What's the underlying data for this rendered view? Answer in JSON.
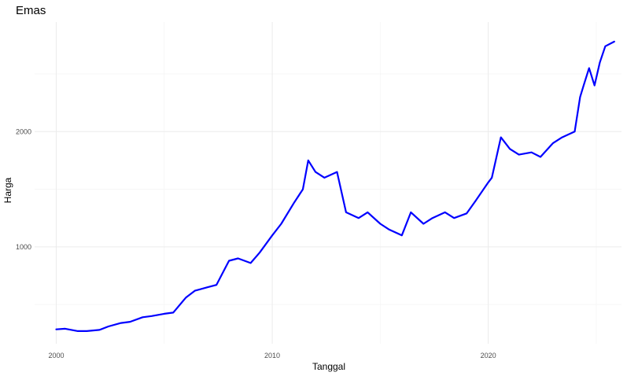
{
  "chart_data": {
    "type": "line",
    "title": "Emas",
    "xlabel": "Tanggal",
    "ylabel": "Harga",
    "x_ticks": [
      "2000",
      "2010",
      "2020"
    ],
    "y_ticks": [
      "1000",
      "2000"
    ],
    "xlim": [
      "1999-01-01",
      "2026-03-01"
    ],
    "ylim": [
      160,
      2950
    ],
    "grid": true,
    "legend": "none",
    "color": "#0000ff",
    "series": [
      {
        "x": [
          "2000-01",
          "2000-06",
          "2001-01",
          "2001-06",
          "2002-01",
          "2002-06",
          "2003-01",
          "2003-06",
          "2004-01",
          "2004-06",
          "2005-01",
          "2005-06",
          "2006-01",
          "2006-06",
          "2007-01",
          "2007-06",
          "2008-01",
          "2008-06",
          "2009-01",
          "2009-06",
          "2010-01",
          "2010-06",
          "2011-01",
          "2011-06",
          "2011-09",
          "2012-01",
          "2012-06",
          "2013-01",
          "2013-06",
          "2014-01",
          "2014-06",
          "2015-01",
          "2015-06",
          "2016-01",
          "2016-06",
          "2017-01",
          "2017-06",
          "2018-01",
          "2018-06",
          "2019-01",
          "2019-06",
          "2020-01",
          "2020-03",
          "2020-08",
          "2021-01",
          "2021-06",
          "2022-01",
          "2022-06",
          "2023-01",
          "2023-06",
          "2024-01",
          "2024-04",
          "2024-06",
          "2024-09",
          "2024-12",
          "2025-03",
          "2025-06",
          "2025-11"
        ],
        "y": [
          285,
          290,
          270,
          270,
          280,
          310,
          340,
          350,
          390,
          400,
          420,
          430,
          560,
          620,
          650,
          670,
          880,
          900,
          860,
          950,
          1100,
          1200,
          1380,
          1500,
          1750,
          1650,
          1600,
          1650,
          1300,
          1250,
          1300,
          1200,
          1150,
          1100,
          1300,
          1200,
          1250,
          1300,
          1250,
          1290,
          1400,
          1560,
          1600,
          1950,
          1850,
          1800,
          1820,
          1780,
          1900,
          1950,
          2000,
          2300,
          2400,
          2550,
          2400,
          2600,
          2740,
          2780
        ]
      }
    ]
  }
}
